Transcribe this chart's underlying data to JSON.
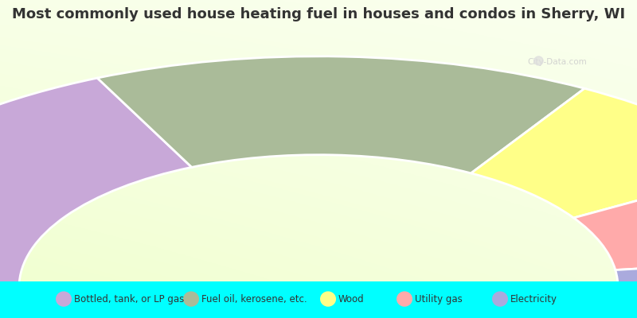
{
  "title": "Most commonly used house heating fuel in houses and condos in Sherry, WI",
  "segments": [
    {
      "label": "Bottled, tank, or LP gas",
      "value": 35,
      "color": "#C8A8D8"
    },
    {
      "label": "Fuel oil, kerosene, etc.",
      "value": 30,
      "color": "#AABB99"
    },
    {
      "label": "Wood",
      "value": 15,
      "color": "#FFFF88"
    },
    {
      "label": "Utility gas",
      "value": 13,
      "color": "#FFAAAA"
    },
    {
      "label": "Electricity",
      "value": 4,
      "color": "#AAAADD"
    }
  ],
  "title_color": "#333333",
  "title_fontsize": 13,
  "legend_fontsize": 8.5,
  "legend_bg": "#00FFFF",
  "watermark": "City-Data.com",
  "bg_left": "#c8e8c8",
  "bg_right": "#e8f8e8",
  "bg_center": "#f5fff5",
  "chart_area_bg": "#d8edd8"
}
